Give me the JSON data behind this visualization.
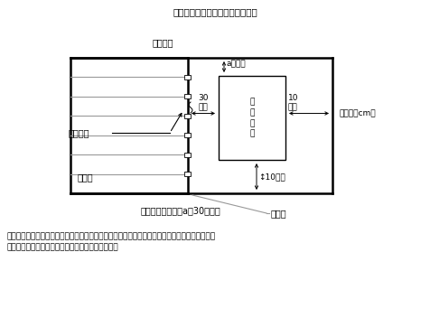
{
  "title": "図３　点検・管理空間（平面図）",
  "subtitle_plan": "（平面）",
  "unit_label": "（単位：cm）",
  "device_label": "放\n射\n装\n置",
  "label_a": "a（注）",
  "label_30": "30\n以上",
  "label_10_side": "10\n以上",
  "label_10_bottom": "↕10以上",
  "label_hoshahoukou": "放射方向",
  "label_sunoko": "スノコ",
  "label_bogosaku": "防護柵",
  "caption": "点検・管理空間　a＝30㎝以上",
  "note_line1": "注）両側面及び背面の３面が壁に囲まれた場所に遠赤外線放射装置を設置する場合は、どちらか",
  "note_line2": "　　一方の側面に点検・管理空間を確保すること。",
  "bg_color": "#ffffff",
  "line_color": "#000000",
  "gray_color": "#999999"
}
